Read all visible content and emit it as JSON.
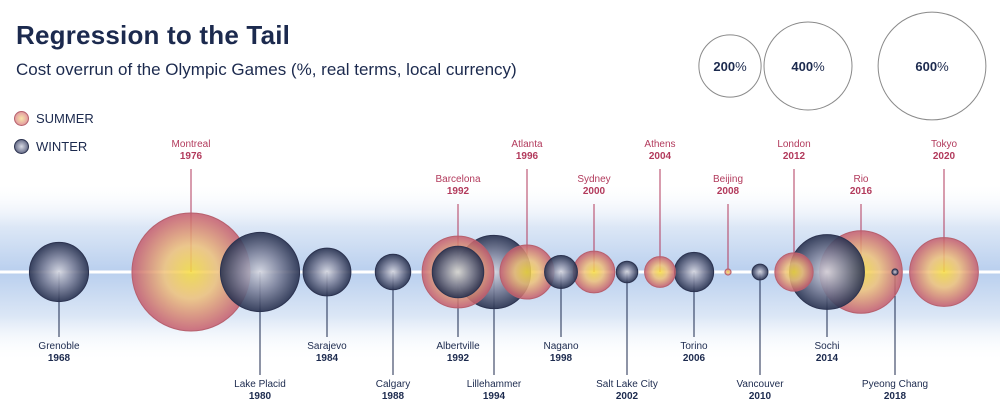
{
  "title": "Regression to the Tail",
  "subtitle": "Cost overrun of the Olympic Games (%, real terms, local currency)",
  "legend": {
    "summer_label": "SUMMER",
    "winter_label": "WINTER"
  },
  "colors": {
    "summer_edge": "#b7616d",
    "summer_core": "#f6d34a",
    "winter_edge": "#2c3350",
    "winter_core": "#c9ccd8",
    "label_summer": "#b23a5c",
    "label_winter": "#1c2a4e"
  },
  "chart_data": {
    "type": "bubble",
    "title": "Regression to the Tail",
    "subtitle": "Cost overrun of the Olympic Games (%, real terms, local currency)",
    "size_legend": [
      {
        "value": 200,
        "unit": "%"
      },
      {
        "value": 400,
        "unit": "%"
      },
      {
        "value": 600,
        "unit": "%"
      }
    ],
    "series": [
      {
        "name": "SUMMER",
        "games": [
          {
            "city": "Montreal",
            "year": "1976",
            "overrun_pct": 720
          },
          {
            "city": "Barcelona",
            "year": "1992",
            "overrun_pct": 266
          },
          {
            "city": "Atlanta",
            "year": "1996",
            "overrun_pct": 151
          },
          {
            "city": "Sydney",
            "year": "2000",
            "overrun_pct": 90
          },
          {
            "city": "Athens",
            "year": "2004",
            "overrun_pct": 49
          },
          {
            "city": "Beijing",
            "year": "2008",
            "overrun_pct": 2
          },
          {
            "city": "London",
            "year": "2012",
            "overrun_pct": 76
          },
          {
            "city": "Rio",
            "year": "2016",
            "overrun_pct": 352
          },
          {
            "city": "Tokyo",
            "year": "2020",
            "overrun_pct": 244
          }
        ]
      },
      {
        "name": "WINTER",
        "games": [
          {
            "city": "Grenoble",
            "year": "1968",
            "overrun_pct": 181
          },
          {
            "city": "Lake Placid",
            "year": "1980",
            "overrun_pct": 324
          },
          {
            "city": "Sarajevo",
            "year": "1984",
            "overrun_pct": 118
          },
          {
            "city": "Calgary",
            "year": "1988",
            "overrun_pct": 65
          },
          {
            "city": "Albertville",
            "year": "1992",
            "overrun_pct": 137
          },
          {
            "city": "Lillehammer",
            "year": "1994",
            "overrun_pct": 277
          },
          {
            "city": "Nagano",
            "year": "1998",
            "overrun_pct": 56
          },
          {
            "city": "Salt Lake City",
            "year": "2002",
            "overrun_pct": 24
          },
          {
            "city": "Torino",
            "year": "2006",
            "overrun_pct": 80
          },
          {
            "city": "Vancouver",
            "year": "2010",
            "overrun_pct": 13
          },
          {
            "city": "Sochi",
            "year": "2014",
            "overrun_pct": 289
          },
          {
            "city": "Pyeong Chang",
            "year": "2018",
            "overrun_pct": 2
          }
        ]
      }
    ]
  }
}
